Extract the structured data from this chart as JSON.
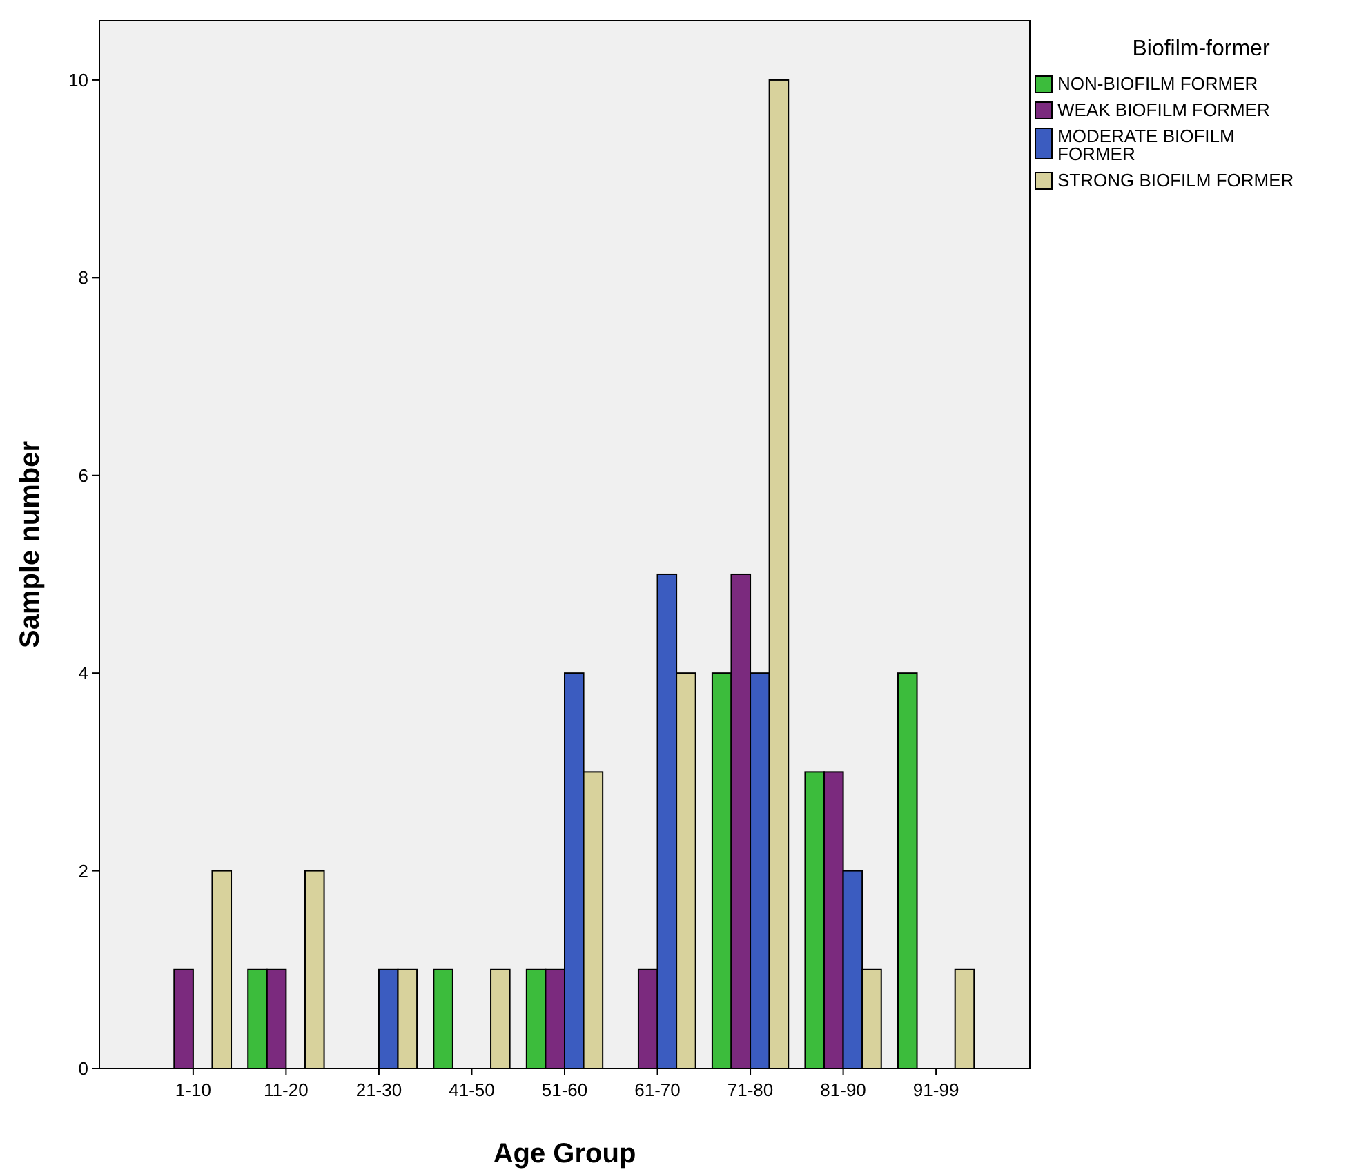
{
  "chart_data": {
    "type": "bar",
    "xlabel": "Age Group",
    "ylabel": "Sample number",
    "legend_title": "Biofilm-former",
    "legend": "right",
    "categories": [
      "1-10",
      "11-20",
      "21-30",
      "41-50",
      "51-60",
      "61-70",
      "71-80",
      "81-90",
      "91-99"
    ],
    "ylim": [
      0,
      10.6
    ],
    "yticks": [
      0,
      2,
      4,
      6,
      8,
      10
    ],
    "grid": false,
    "series": [
      {
        "name": "NON-BIOFILM FORMER",
        "color": "#3cbc3c",
        "values": [
          0,
          1,
          0,
          1,
          1,
          0,
          4,
          3,
          4
        ]
      },
      {
        "name": "WEAK BIOFILM FORMER",
        "color": "#7b2a7e",
        "values": [
          1,
          1,
          0,
          0,
          1,
          1,
          5,
          3,
          0
        ]
      },
      {
        "name": "MODERATE BIOFILM FORMER",
        "color": "#3b5cc0",
        "values": [
          0,
          0,
          1,
          0,
          4,
          5,
          4,
          2,
          0
        ]
      },
      {
        "name": "STRONG BIOFILM FORMER",
        "color": "#d8d29c",
        "values": [
          2,
          2,
          1,
          1,
          3,
          4,
          10,
          1,
          1
        ]
      }
    ]
  }
}
